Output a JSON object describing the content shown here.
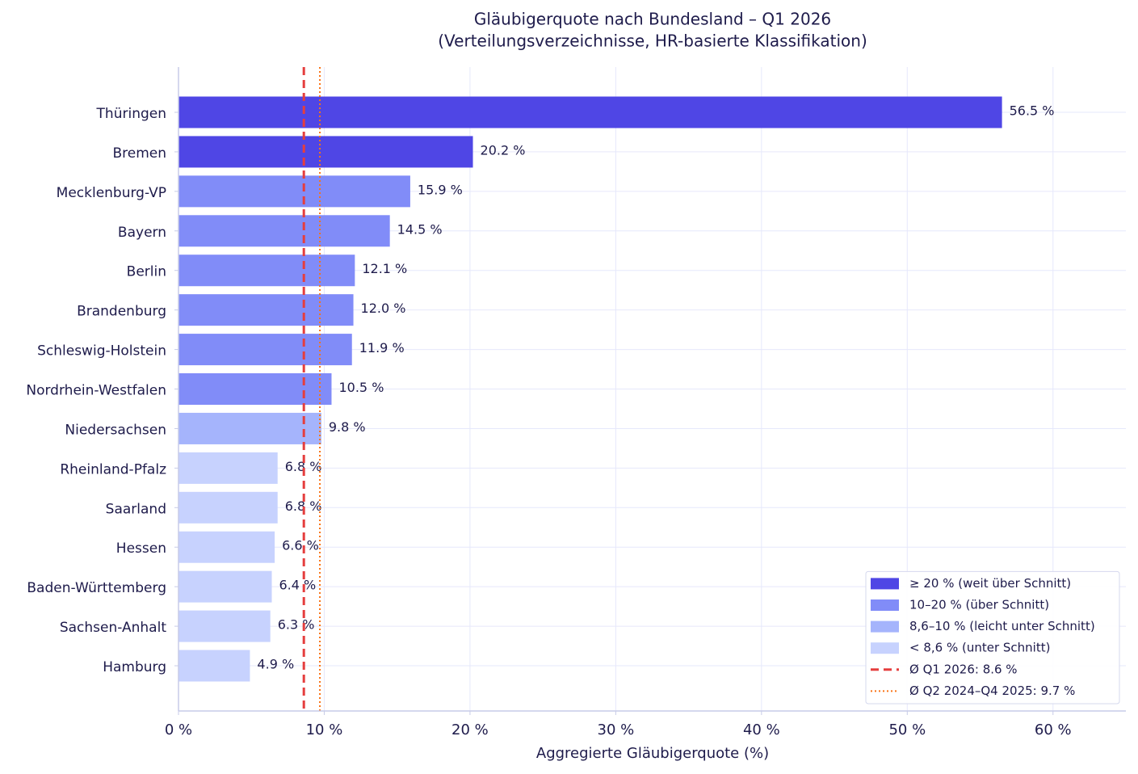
{
  "chart_data": {
    "type": "barh",
    "title": "Gläubigerquote nach Bundesland – Q1 2026",
    "subtitle": "(Verteilungsverzeichnisse, HR-basierte Klassifikation)",
    "x_label": "Aggregierte Gläubigerquote (%)",
    "categories": [
      "Thüringen",
      "Bremen",
      "Mecklenburg-VP",
      "Bayern",
      "Berlin",
      "Brandenburg",
      "Schleswig-Holstein",
      "Nordrhein-Westfalen",
      "Niedersachsen",
      "Rheinland-Pfalz",
      "Saarland",
      "Hessen",
      "Baden-Württemberg",
      "Sachsen-Anhalt",
      "Hamburg"
    ],
    "values": [
      56.5,
      20.2,
      15.9,
      14.5,
      12.1,
      12.0,
      11.9,
      10.5,
      9.8,
      6.8,
      6.8,
      6.6,
      6.4,
      6.3,
      4.9
    ],
    "value_labels": [
      "56.5 %",
      "20.2 %",
      "15.9 %",
      "14.5 %",
      "12.1 %",
      "12.0 %",
      "11.9 %",
      "10.5 %",
      "9.8 %",
      "6.8 %",
      "6.8 %",
      "6.6 %",
      "6.4 %",
      "6.3 %",
      "4.9 %"
    ],
    "colors": [
      "#4f46e5",
      "#4f46e5",
      "#818cf8",
      "#818cf8",
      "#818cf8",
      "#818cf8",
      "#818cf8",
      "#818cf8",
      "#a5b4fc",
      "#c7d2fe",
      "#c7d2fe",
      "#c7d2fe",
      "#c7d2fe",
      "#c7d2fe",
      "#c7d2fe"
    ],
    "xlim": [
      0,
      65
    ],
    "xticks": [
      {
        "value": 0,
        "label": "0 %"
      },
      {
        "value": 10,
        "label": "10 %"
      },
      {
        "value": 20,
        "label": "20 %"
      },
      {
        "value": 30,
        "label": "30 %"
      },
      {
        "value": 40,
        "label": "40 %"
      },
      {
        "value": 50,
        "label": "50 %"
      },
      {
        "value": 60,
        "label": "60 %"
      }
    ],
    "grid": true,
    "legend_position": "lower right",
    "legend": [
      {
        "label": "≥ 20 % (weit über Schnitt)",
        "color": "#4f46e5"
      },
      {
        "label": "10–20 % (über Schnitt)",
        "color": "#818cf8"
      },
      {
        "label": "8,6–10 % (leicht unter Schnitt)",
        "color": "#a5b4fc"
      },
      {
        "label": "< 8,6 % (unter Schnitt)",
        "color": "#c7d2fe"
      }
    ],
    "reference_lines": [
      {
        "value": 8.6,
        "label": "Ø Q1 2026: 8.6 %",
        "color": "#e53e3e",
        "style": "dashed"
      },
      {
        "value": 9.7,
        "label": "Ø Q2 2024–Q4 2025: 9.7 %",
        "color": "#f97316",
        "style": "dotted"
      }
    ]
  }
}
